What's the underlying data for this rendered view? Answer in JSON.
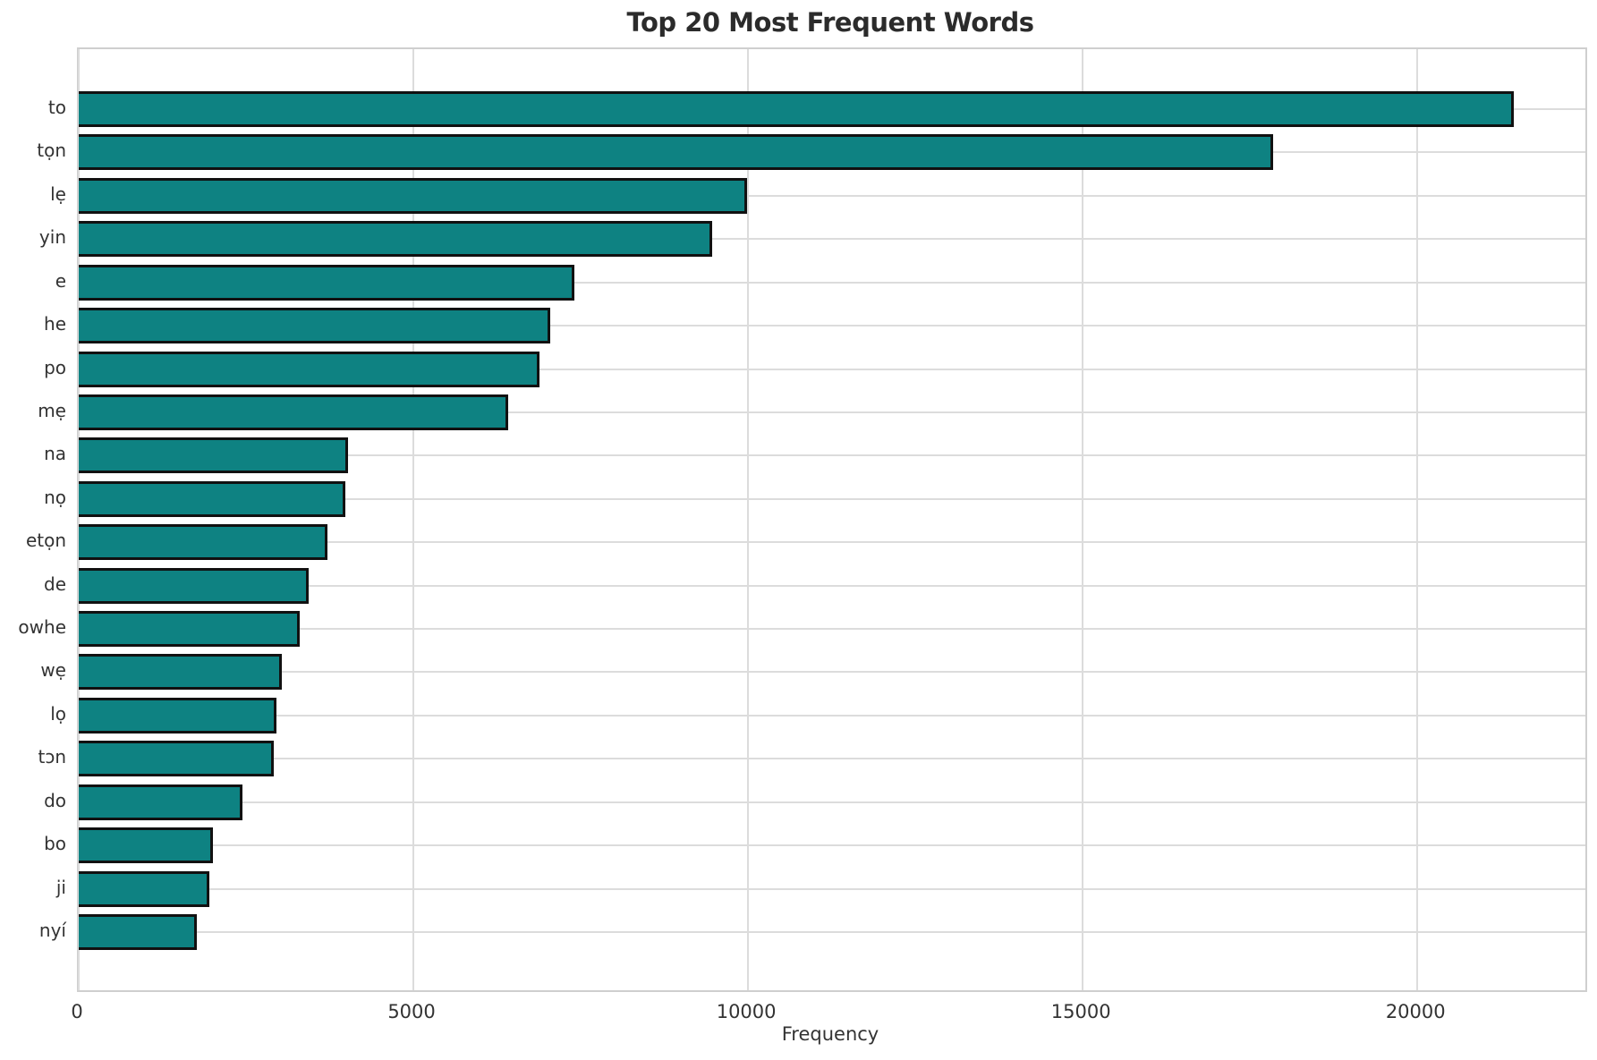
{
  "figure": {
    "background": "#ffffff"
  },
  "chart_data": {
    "type": "bar",
    "orientation": "horizontal",
    "title": "Top 20 Most Frequent Words",
    "xlabel": "Frequency",
    "ylabel": "",
    "categories": [
      "to",
      "tọn",
      "lẹ",
      "yin",
      "e",
      "he",
      "po",
      "mẹ",
      "na",
      "nọ",
      "etọn",
      "de",
      "owhe",
      "wẹ",
      "lọ",
      "tɔn",
      "do",
      "bo",
      "ji",
      "nyí"
    ],
    "values": [
      21440,
      17840,
      9990,
      9460,
      7410,
      7040,
      6880,
      6420,
      4030,
      3980,
      3720,
      3430,
      3300,
      3030,
      2960,
      2910,
      2440,
      2000,
      1950,
      1770
    ],
    "xlim": [
      0,
      22510
    ],
    "xticks": [
      0,
      5000,
      10000,
      15000,
      20000
    ],
    "xtick_labels": [
      "0",
      "5000",
      "10000",
      "15000",
      "20000"
    ],
    "grid": true,
    "legend": null,
    "colors": {
      "bar_fill": "#0e8282",
      "bar_edge": "#111111",
      "grid": "#dcdcdc",
      "spine": "#cfcfcf",
      "title": "#2b2b2b",
      "tick_label": "#333333"
    }
  }
}
